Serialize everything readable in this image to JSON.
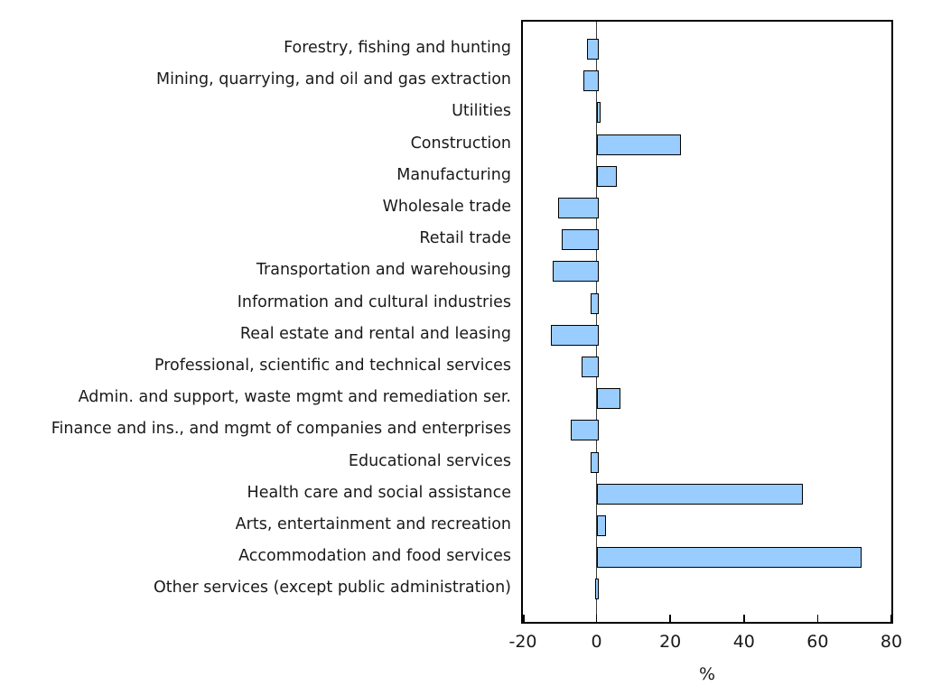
{
  "chart_data": {
    "type": "bar",
    "orientation": "horizontal",
    "title": "",
    "xlabel": "%",
    "ylabel": "",
    "xlim": [
      -20,
      80
    ],
    "x_ticks": [
      -20,
      0,
      20,
      40,
      60,
      80
    ],
    "grid": false,
    "legend": null,
    "bar_color": "#99CCFF",
    "bar_border_color": "#000000",
    "categories": [
      "Forestry, fishing and hunting",
      "Mining, quarrying, and oil and gas extraction",
      "Utilities",
      "Construction",
      "Manufacturing",
      "Wholesale trade",
      "Retail trade",
      "Transportation and warehousing",
      "Information and cultural industries",
      "Real estate and rental and leasing",
      "Professional, scientific and technical services",
      "Admin. and support, waste mgmt and remediation ser.",
      "Finance and ins., and mgmt of companies and enterprises",
      "Educational services",
      "Health care and social assistance",
      "Arts, entertainment and recreation",
      "Accommodation and food services",
      "Other services (except public administration)"
    ],
    "values": [
      -2.5,
      -3.5,
      0.5,
      22.5,
      5,
      -10.5,
      -9.5,
      -12,
      -1.5,
      -12.5,
      -4,
      6,
      -7,
      -1.5,
      55.5,
      2,
      71.5,
      -0.3
    ]
  }
}
